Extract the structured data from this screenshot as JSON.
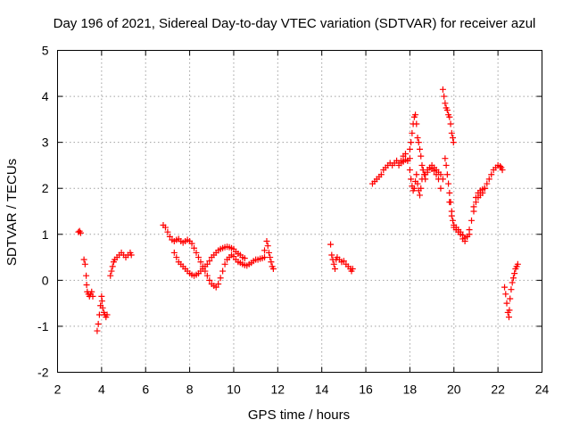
{
  "chart_data": {
    "type": "scatter",
    "title": "Day 196 of 2021, Sidereal Day-to-day VTEC variation (SDTVAR) for receiver azul",
    "xlabel": "GPS time / hours",
    "ylabel": "SDTVAR / TECUs",
    "xlim": [
      2,
      24
    ],
    "ylim": [
      -2,
      5
    ],
    "xticks": [
      "2",
      "4",
      "6",
      "8",
      "10",
      "12",
      "14",
      "16",
      "18",
      "20",
      "22",
      "24"
    ],
    "yticks": [
      "-2",
      "-1",
      "0",
      "1",
      "2",
      "3",
      "4",
      "5"
    ],
    "grid": true,
    "marker": "+",
    "color": "#ff0000",
    "series": [
      {
        "name": "SDTVAR",
        "segments": [
          [
            [
              2.95,
              1.05
            ],
            [
              3.0,
              1.07
            ],
            [
              3.05,
              1.03
            ]
          ],
          [
            [
              3.2,
              0.45
            ],
            [
              3.25,
              0.35
            ],
            [
              3.3,
              0.1
            ],
            [
              3.32,
              -0.1
            ],
            [
              3.35,
              -0.25
            ],
            [
              3.4,
              -0.3
            ],
            [
              3.45,
              -0.35
            ],
            [
              3.5,
              -0.3
            ],
            [
              3.55,
              -0.25
            ],
            [
              3.6,
              -0.35
            ]
          ],
          [
            [
              3.8,
              -1.1
            ],
            [
              3.85,
              -0.95
            ],
            [
              3.9,
              -0.75
            ],
            [
              3.95,
              -0.55
            ],
            [
              4.0,
              -0.35
            ],
            [
              4.02,
              -0.45
            ],
            [
              4.05,
              -0.6
            ],
            [
              4.1,
              -0.7
            ],
            [
              4.15,
              -0.75
            ],
            [
              4.2,
              -0.8
            ],
            [
              4.25,
              -0.75
            ]
          ],
          [
            [
              4.4,
              0.1
            ],
            [
              4.45,
              0.2
            ],
            [
              4.5,
              0.3
            ],
            [
              4.55,
              0.4
            ],
            [
              4.6,
              0.45
            ],
            [
              4.7,
              0.5
            ],
            [
              4.8,
              0.55
            ],
            [
              4.9,
              0.6
            ],
            [
              5.0,
              0.55
            ],
            [
              5.1,
              0.5
            ],
            [
              5.2,
              0.55
            ],
            [
              5.3,
              0.6
            ],
            [
              5.35,
              0.55
            ]
          ],
          [
            [
              6.8,
              1.2
            ],
            [
              6.9,
              1.15
            ],
            [
              7.0,
              1.05
            ],
            [
              7.1,
              0.95
            ],
            [
              7.2,
              0.88
            ],
            [
              7.3,
              0.85
            ],
            [
              7.4,
              0.88
            ],
            [
              7.5,
              0.9
            ],
            [
              7.6,
              0.85
            ],
            [
              7.7,
              0.82
            ],
            [
              7.8,
              0.85
            ],
            [
              7.9,
              0.88
            ],
            [
              8.0,
              0.85
            ],
            [
              8.1,
              0.8
            ],
            [
              8.2,
              0.7
            ],
            [
              8.3,
              0.6
            ],
            [
              8.4,
              0.5
            ],
            [
              8.5,
              0.4
            ],
            [
              8.6,
              0.3
            ],
            [
              8.7,
              0.2
            ],
            [
              8.8,
              0.1
            ],
            [
              8.9,
              0.0
            ],
            [
              9.0,
              -0.08
            ],
            [
              9.1,
              -0.12
            ],
            [
              9.2,
              -0.15
            ],
            [
              9.3,
              -0.08
            ],
            [
              9.4,
              0.05
            ],
            [
              9.5,
              0.2
            ],
            [
              9.6,
              0.35
            ],
            [
              9.7,
              0.45
            ],
            [
              9.8,
              0.5
            ],
            [
              9.9,
              0.55
            ],
            [
              10.0,
              0.52
            ],
            [
              10.1,
              0.45
            ],
            [
              10.2,
              0.4
            ],
            [
              10.3,
              0.38
            ],
            [
              10.4,
              0.35
            ],
            [
              10.5,
              0.33
            ],
            [
              10.6,
              0.32
            ],
            [
              10.7,
              0.35
            ],
            [
              10.8,
              0.38
            ],
            [
              10.9,
              0.42
            ],
            [
              11.0,
              0.45
            ],
            [
              11.1,
              0.45
            ],
            [
              11.2,
              0.47
            ],
            [
              11.3,
              0.48
            ],
            [
              11.4,
              0.5
            ]
          ],
          [
            [
              7.3,
              0.6
            ],
            [
              7.4,
              0.5
            ],
            [
              7.5,
              0.4
            ],
            [
              7.6,
              0.35
            ],
            [
              7.7,
              0.3
            ],
            [
              7.8,
              0.25
            ],
            [
              7.9,
              0.2
            ],
            [
              8.0,
              0.15
            ],
            [
              8.1,
              0.12
            ],
            [
              8.2,
              0.1
            ],
            [
              8.3,
              0.12
            ],
            [
              8.4,
              0.15
            ],
            [
              8.5,
              0.2
            ],
            [
              8.6,
              0.25
            ],
            [
              8.7,
              0.3
            ],
            [
              8.8,
              0.35
            ],
            [
              8.9,
              0.42
            ],
            [
              9.0,
              0.5
            ],
            [
              9.1,
              0.55
            ],
            [
              9.2,
              0.6
            ],
            [
              9.3,
              0.65
            ],
            [
              9.4,
              0.68
            ],
            [
              9.5,
              0.7
            ],
            [
              9.6,
              0.72
            ],
            [
              9.7,
              0.73
            ],
            [
              9.8,
              0.72
            ],
            [
              9.9,
              0.7
            ],
            [
              10.0,
              0.68
            ],
            [
              10.1,
              0.62
            ],
            [
              10.2,
              0.58
            ],
            [
              10.3,
              0.55
            ],
            [
              10.4,
              0.5
            ],
            [
              10.5,
              0.48
            ]
          ],
          [
            [
              11.4,
              0.65
            ],
            [
              11.5,
              0.85
            ],
            [
              11.55,
              0.75
            ],
            [
              11.6,
              0.6
            ],
            [
              11.65,
              0.5
            ],
            [
              11.7,
              0.4
            ],
            [
              11.75,
              0.3
            ],
            [
              11.8,
              0.25
            ]
          ],
          [
            [
              14.4,
              0.78
            ],
            [
              14.45,
              0.55
            ],
            [
              14.5,
              0.45
            ],
            [
              14.55,
              0.35
            ],
            [
              14.6,
              0.25
            ],
            [
              14.65,
              0.45
            ],
            [
              14.7,
              0.5
            ],
            [
              14.8,
              0.45
            ],
            [
              14.9,
              0.4
            ],
            [
              15.0,
              0.42
            ],
            [
              15.1,
              0.35
            ],
            [
              15.2,
              0.3
            ],
            [
              15.3,
              0.25
            ],
            [
              15.35,
              0.2
            ],
            [
              15.4,
              0.25
            ]
          ],
          [
            [
              16.3,
              2.1
            ],
            [
              16.4,
              2.15
            ],
            [
              16.5,
              2.2
            ],
            [
              16.6,
              2.25
            ],
            [
              16.7,
              2.3
            ],
            [
              16.8,
              2.4
            ],
            [
              16.9,
              2.45
            ],
            [
              17.0,
              2.5
            ],
            [
              17.1,
              2.55
            ],
            [
              17.2,
              2.5
            ],
            [
              17.3,
              2.55
            ],
            [
              17.4,
              2.6
            ],
            [
              17.5,
              2.55
            ],
            [
              17.6,
              2.6
            ],
            [
              17.7,
              2.58
            ],
            [
              17.8,
              2.62
            ],
            [
              17.9,
              2.6
            ],
            [
              18.0,
              2.65
            ]
          ],
          [
            [
              17.5,
              2.5
            ],
            [
              17.6,
              2.55
            ],
            [
              17.7,
              2.7
            ],
            [
              17.8,
              2.75
            ],
            [
              17.9,
              2.6
            ],
            [
              18.0,
              2.85
            ],
            [
              18.05,
              3.0
            ],
            [
              18.1,
              3.2
            ],
            [
              18.15,
              3.4
            ],
            [
              18.2,
              3.55
            ],
            [
              18.25,
              3.6
            ],
            [
              18.3,
              3.4
            ],
            [
              18.35,
              3.1
            ],
            [
              18.4,
              3.0
            ],
            [
              18.45,
              2.85
            ],
            [
              18.5,
              2.7
            ],
            [
              18.55,
              2.5
            ],
            [
              18.6,
              2.4
            ]
          ],
          [
            [
              18.0,
              2.4
            ],
            [
              18.05,
              2.2
            ],
            [
              18.1,
              2.05
            ],
            [
              18.15,
              1.95
            ],
            [
              18.2,
              2.0
            ],
            [
              18.25,
              2.15
            ],
            [
              18.3,
              2.3
            ],
            [
              18.35,
              2.1
            ],
            [
              18.4,
              1.95
            ],
            [
              18.45,
              1.85
            ],
            [
              18.5,
              2.0
            ],
            [
              18.55,
              2.2
            ],
            [
              18.6,
              2.4
            ],
            [
              18.65,
              2.3
            ],
            [
              18.7,
              2.2
            ],
            [
              18.8,
              2.4
            ],
            [
              18.9,
              2.45
            ],
            [
              19.0,
              2.42
            ],
            [
              19.1,
              2.38
            ],
            [
              19.2,
              2.3
            ],
            [
              19.3,
              2.2
            ],
            [
              19.4,
              2.0
            ]
          ],
          [
            [
              18.7,
              2.3
            ],
            [
              18.8,
              2.35
            ],
            [
              18.9,
              2.45
            ],
            [
              19.0,
              2.5
            ],
            [
              19.1,
              2.45
            ],
            [
              19.2,
              2.4
            ],
            [
              19.3,
              2.35
            ],
            [
              19.4,
              2.3
            ],
            [
              19.5,
              2.2
            ]
          ],
          [
            [
              19.5,
              4.15
            ],
            [
              19.55,
              4.0
            ],
            [
              19.6,
              3.85
            ],
            [
              19.65,
              3.75
            ],
            [
              19.7,
              3.7
            ],
            [
              19.75,
              3.6
            ],
            [
              19.8,
              3.55
            ],
            [
              19.85,
              3.4
            ],
            [
              19.9,
              3.2
            ],
            [
              19.95,
              3.1
            ],
            [
              19.98,
              3.0
            ],
            [
              19.6,
              2.65
            ],
            [
              19.65,
              2.5
            ],
            [
              19.7,
              2.3
            ],
            [
              19.75,
              2.1
            ],
            [
              19.8,
              1.9
            ],
            [
              19.85,
              1.7
            ],
            [
              19.9,
              1.5
            ],
            [
              19.95,
              1.3
            ],
            [
              20.0,
              1.2
            ],
            [
              20.1,
              1.15
            ],
            [
              20.2,
              1.1
            ],
            [
              20.3,
              1.05
            ],
            [
              20.4,
              0.98
            ],
            [
              20.5,
              0.92
            ],
            [
              20.6,
              0.95
            ],
            [
              20.7,
              1.0
            ]
          ],
          [
            [
              19.8,
              1.7
            ],
            [
              19.9,
              1.4
            ],
            [
              20.0,
              1.15
            ],
            [
              20.1,
              1.1
            ],
            [
              20.2,
              1.05
            ],
            [
              20.3,
              1.0
            ],
            [
              20.4,
              0.9
            ],
            [
              20.5,
              0.85
            ],
            [
              20.6,
              0.95
            ],
            [
              20.7,
              1.1
            ],
            [
              20.8,
              1.3
            ],
            [
              20.9,
              1.5
            ],
            [
              21.0,
              1.7
            ],
            [
              21.1,
              1.8
            ],
            [
              21.2,
              1.85
            ],
            [
              21.3,
              1.9
            ],
            [
              21.4,
              2.0
            ],
            [
              21.5,
              2.1
            ],
            [
              21.6,
              2.2
            ],
            [
              21.7,
              2.3
            ],
            [
              21.8,
              2.4
            ],
            [
              21.9,
              2.45
            ],
            [
              22.0,
              2.5
            ],
            [
              22.1,
              2.48
            ],
            [
              22.15,
              2.45
            ],
            [
              22.2,
              2.4
            ]
          ],
          [
            [
              20.9,
              1.6
            ],
            [
              21.0,
              1.8
            ],
            [
              21.1,
              1.9
            ],
            [
              21.2,
              1.95
            ],
            [
              21.3,
              1.98
            ],
            [
              21.4,
              2.0
            ]
          ],
          [
            [
              22.3,
              -0.15
            ],
            [
              22.35,
              -0.3
            ],
            [
              22.4,
              -0.5
            ],
            [
              22.45,
              -0.7
            ],
            [
              22.5,
              -0.8
            ],
            [
              22.52,
              -0.65
            ],
            [
              22.55,
              -0.4
            ],
            [
              22.6,
              -0.2
            ],
            [
              22.65,
              -0.05
            ],
            [
              22.7,
              0.05
            ],
            [
              22.75,
              0.15
            ],
            [
              22.8,
              0.25
            ],
            [
              22.85,
              0.3
            ],
            [
              22.9,
              0.35
            ]
          ]
        ]
      }
    ]
  }
}
